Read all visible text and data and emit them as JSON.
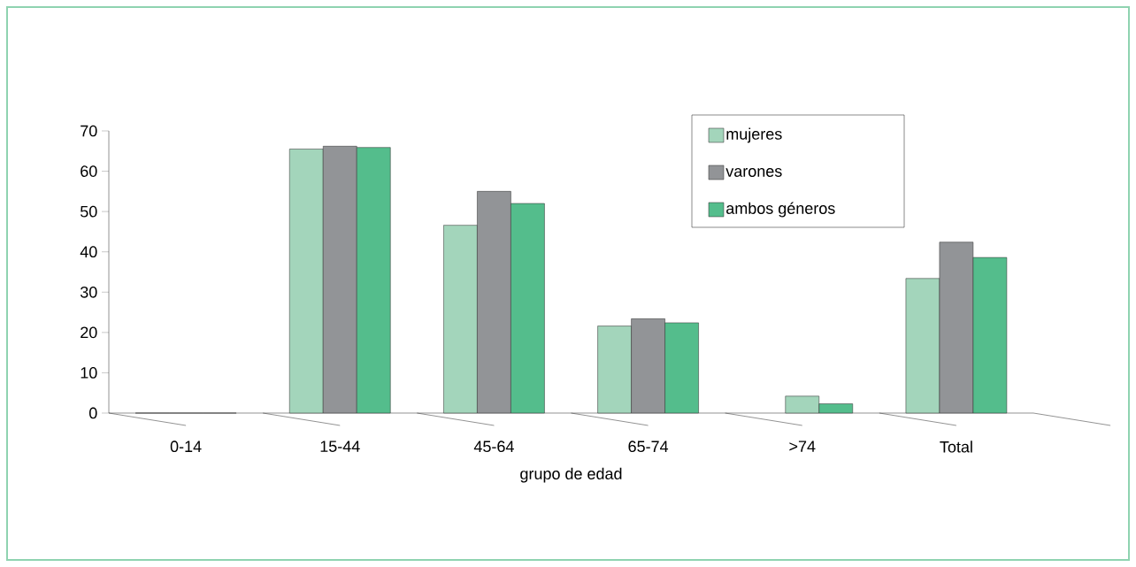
{
  "chart_data": {
    "type": "bar",
    "xlabel": "grupo de edad",
    "categories": [
      "0-14",
      "15-44",
      "45-64",
      "65-74",
      ">74",
      "Total"
    ],
    "series": [
      {
        "name": "mujeres",
        "color": "#a3d5bb",
        "values": [
          0,
          65.5,
          46.6,
          21.6,
          null,
          33.4
        ]
      },
      {
        "name": "varones",
        "color": "#929497",
        "colors": [
          "#929497",
          "#929497",
          "#929497",
          "#929497",
          "#a3d5bb",
          "#929497"
        ],
        "values": [
          0,
          66.2,
          55.0,
          23.4,
          4.2,
          42.4
        ]
      },
      {
        "name": "ambos géneros",
        "color": "#54bd8c",
        "values": [
          0,
          65.9,
          52.0,
          22.4,
          2.3,
          38.6
        ]
      }
    ],
    "ylim": [
      0,
      70
    ],
    "yticks": [
      0,
      10,
      20,
      30,
      40,
      50,
      60,
      70
    ],
    "grid": false,
    "legend": "top right"
  }
}
